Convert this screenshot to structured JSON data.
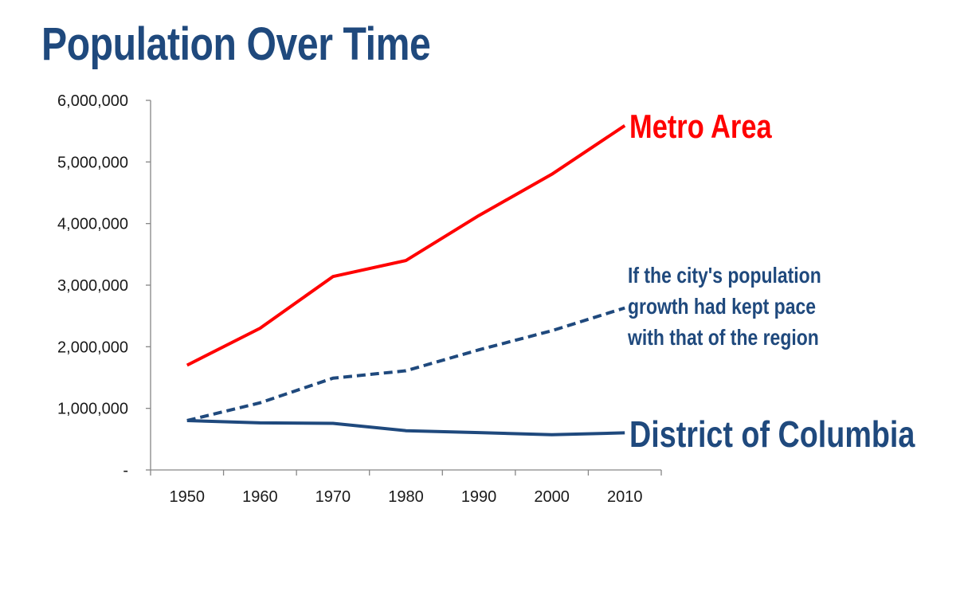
{
  "chart_data": {
    "type": "line",
    "title": "Population Over Time",
    "xlabel": "",
    "ylabel": "",
    "x": [
      1950,
      1960,
      1970,
      1980,
      1990,
      2000,
      2010
    ],
    "x_tick_labels": [
      "1950",
      "1960",
      "1970",
      "1980",
      "1990",
      "2000",
      "2010"
    ],
    "y_tick_labels": [
      "-",
      "1,000,000",
      "2,000,000",
      "3,000,000",
      "4,000,000",
      "5,000,000",
      "6,000,000"
    ],
    "ylim": [
      0,
      6000000
    ],
    "grid": false,
    "legend": "none",
    "series": [
      {
        "name": "Metro Area",
        "color": "#ff0000",
        "style": "solid",
        "values": [
          1700000,
          2300000,
          3140000,
          3400000,
          4130000,
          4800000,
          5590000
        ]
      },
      {
        "name": "If the city's population\ngrowth had kept pace\nwith that of the region",
        "color": "#1f497d",
        "style": "dashed",
        "values": [
          802000,
          1090000,
          1490000,
          1610000,
          1950000,
          2260000,
          2630000
        ]
      },
      {
        "name": "District of Columbia",
        "color": "#1f497d",
        "style": "solid",
        "values": [
          802000,
          764000,
          757000,
          638000,
          607000,
          572000,
          602000
        ]
      }
    ]
  }
}
